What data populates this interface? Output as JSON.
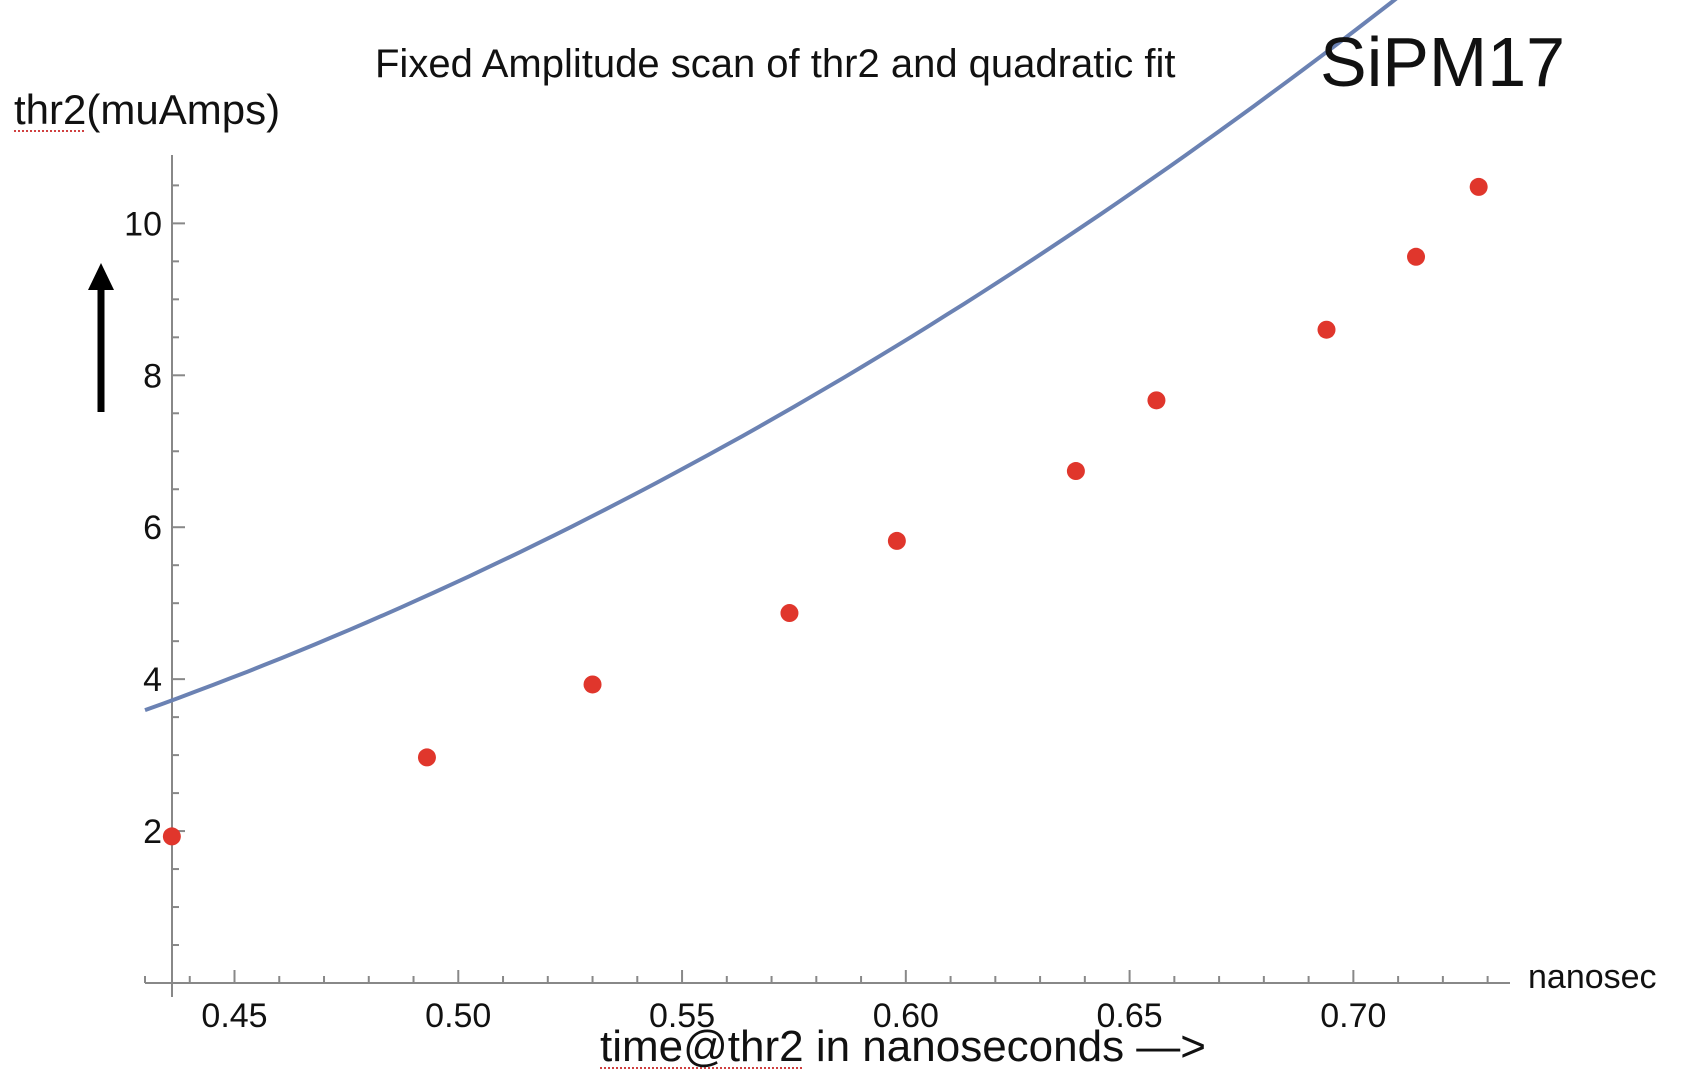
{
  "chart_data": {
    "type": "scatter",
    "title": "Fixed Amplitude scan of thr2 and quadratic fit",
    "subtitle": "SiPM17",
    "ylabel_prefix": "thr2",
    "ylabel_suffix": "(muAmps)",
    "xlabel_prefix": "time@thr2",
    "xlabel_suffix": " in nanoseconds —>",
    "xunit": "nanosec",
    "xlim": [
      0.43,
      0.735
    ],
    "ylim": [
      0,
      10.9
    ],
    "xticks": [
      "0.45",
      "0.50",
      "0.55",
      "0.60",
      "0.65",
      "0.70"
    ],
    "yticks": [
      "2",
      "4",
      "6",
      "8",
      "10"
    ],
    "grid": false,
    "points": {
      "color": "#e0362c",
      "x": [
        0.436,
        0.493,
        0.53,
        0.574,
        0.598,
        0.638,
        0.656,
        0.694,
        0.714,
        0.728
      ],
      "y": [
        1.93,
        2.97,
        3.93,
        4.87,
        5.82,
        6.74,
        7.67,
        8.6,
        9.56,
        10.48
      ]
    },
    "fit": {
      "color": "#6b82b3",
      "type": "quadratic",
      "coefficients": {
        "a": 44.29,
        "b": -16.97,
        "c": 2.7
      }
    }
  }
}
